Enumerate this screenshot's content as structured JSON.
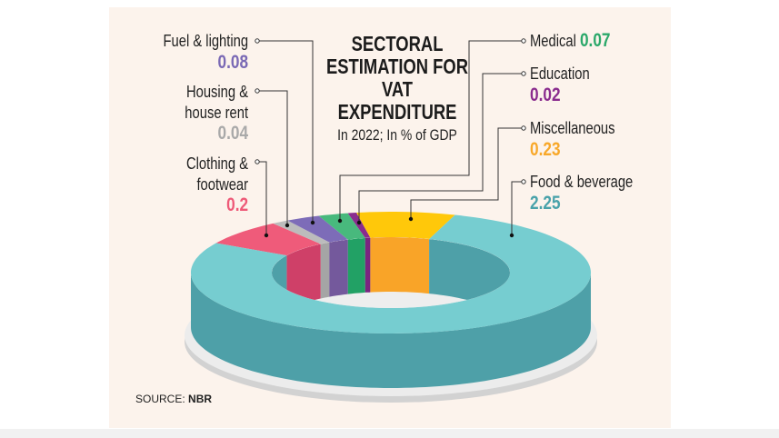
{
  "chart_data": {
    "type": "pie",
    "style": "3d-donut",
    "title": "SECTORAL ESTIMATION FOR VAT EXPENDITURE",
    "subtitle": "In 2022; In % of GDP",
    "source_label": "SOURCE:",
    "source": "NBR",
    "slices": [
      {
        "name": "Clothing & footwear",
        "lines": [
          "Clothing &",
          "footwear"
        ],
        "value": 0.2,
        "display": "0.2",
        "color": "#ef5b7a",
        "wall": "#cf4068"
      },
      {
        "name": "Housing & house rent",
        "lines": [
          "Housing &",
          "house rent"
        ],
        "value": 0.04,
        "display": "0.04",
        "color": "#bcbcbc",
        "wall": "#a5a5a5"
      },
      {
        "name": "Fuel & lighting",
        "lines": [
          "Fuel & lighting"
        ],
        "value": 0.08,
        "display": "0.08",
        "color": "#7d6cb8",
        "wall": "#74599c"
      },
      {
        "name": "Medical",
        "lines": [
          "Medical"
        ],
        "value": 0.07,
        "display": "0.07",
        "color": "#48b97d",
        "wall": "#22a165"
      },
      {
        "name": "Education",
        "lines": [
          "Education"
        ],
        "value": 0.02,
        "display": "0.02",
        "color": "#8a2c8e",
        "wall": "#7a2480"
      },
      {
        "name": "Miscellaneous",
        "lines": [
          "Miscellaneous"
        ],
        "value": 0.23,
        "display": "0.23",
        "color": "#ffc80a",
        "wall": "#f9a428"
      },
      {
        "name": "Food & beverage",
        "lines": [
          "Food & beverage"
        ],
        "value": 2.25,
        "display": "2.25",
        "color": "#76cdd0",
        "wall": "#4ea0a8"
      }
    ],
    "value_colors": {
      "Clothing & footwear": "#ee5a78",
      "Housing & house rent": "#a9a9a9",
      "Fuel & lighting": "#7a69b5",
      "Medical": "#2ba86a",
      "Education": "#8a2c8e",
      "Miscellaneous": "#f8a82a",
      "Food & beverage": "#49a2aa"
    }
  }
}
